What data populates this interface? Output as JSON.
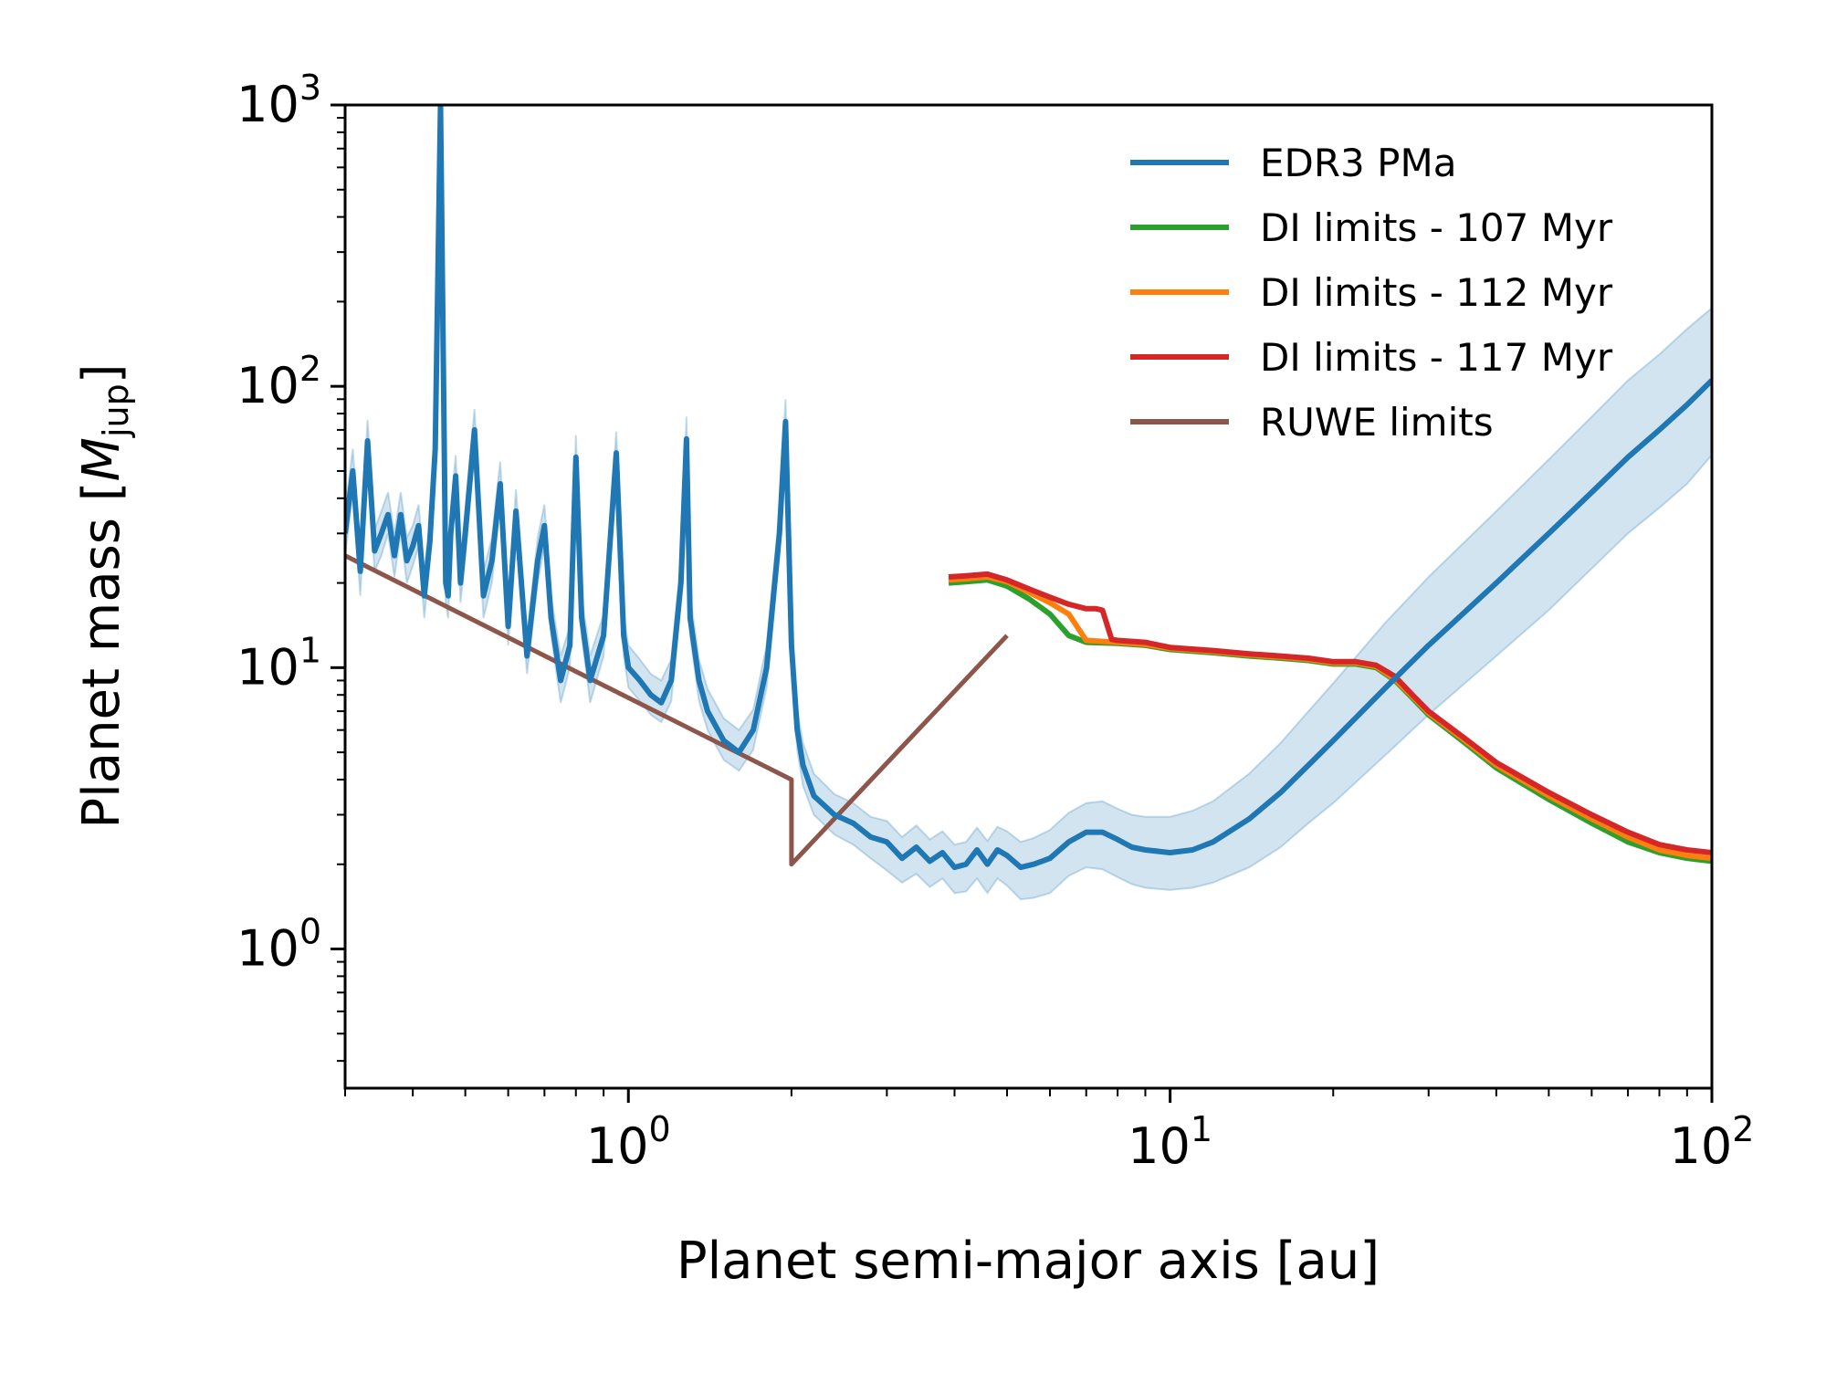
{
  "chart_data": {
    "type": "line",
    "title": "",
    "xlabel": "Planet semi-major axis [au]",
    "ylabel_main": "Planet mass [",
    "ylabel_symbol": "M",
    "ylabel_sub": "jup",
    "ylabel_close": "]",
    "xscale": "log",
    "yscale": "log",
    "xlim": [
      0.3,
      100
    ],
    "ylim": [
      0.32,
      1000
    ],
    "grid": false,
    "legend_position": "top-right",
    "x_ticks": [
      {
        "value": 1,
        "base": "10",
        "exp": "0"
      },
      {
        "value": 10,
        "base": "10",
        "exp": "1"
      },
      {
        "value": 100,
        "base": "10",
        "exp": "2"
      }
    ],
    "y_ticks": [
      {
        "value": 1,
        "base": "10",
        "exp": "0"
      },
      {
        "value": 10,
        "base": "10",
        "exp": "1"
      },
      {
        "value": 100,
        "base": "10",
        "exp": "2"
      },
      {
        "value": 1000,
        "base": "10",
        "exp": "3"
      }
    ],
    "series": [
      {
        "name": "EDR3 PMa",
        "color": "#1f77b4",
        "band_color": "#1f77b4",
        "x": [
          0.3,
          0.31,
          0.32,
          0.33,
          0.34,
          0.35,
          0.36,
          0.37,
          0.38,
          0.39,
          0.4,
          0.41,
          0.42,
          0.43,
          0.44,
          0.45,
          0.46,
          0.465,
          0.47,
          0.48,
          0.49,
          0.5,
          0.52,
          0.54,
          0.56,
          0.58,
          0.6,
          0.62,
          0.65,
          0.68,
          0.7,
          0.72,
          0.75,
          0.78,
          0.8,
          0.82,
          0.85,
          0.9,
          0.95,
          0.98,
          1.0,
          1.05,
          1.1,
          1.15,
          1.2,
          1.25,
          1.28,
          1.3,
          1.35,
          1.4,
          1.5,
          1.6,
          1.7,
          1.8,
          1.9,
          1.95,
          2.0,
          2.05,
          2.1,
          2.2,
          2.4,
          2.6,
          2.8,
          3.0,
          3.2,
          3.4,
          3.6,
          3.8,
          4.0,
          4.2,
          4.4,
          4.6,
          4.8,
          5.0,
          5.3,
          5.6,
          6.0,
          6.5,
          7.0,
          7.5,
          8.0,
          8.5,
          9.0,
          10,
          11,
          12,
          14,
          16,
          18,
          20,
          25,
          30,
          40,
          50,
          60,
          70,
          80,
          90,
          100
        ],
        "y": [
          30,
          50,
          22,
          64,
          26,
          30,
          35,
          25,
          35,
          24,
          27,
          32,
          18,
          28,
          60,
          1000,
          20,
          18,
          30,
          48,
          20,
          30,
          70,
          18,
          24,
          45,
          14,
          36,
          11,
          24,
          32,
          15,
          9,
          12,
          56,
          15,
          9,
          13,
          58,
          13,
          10,
          9,
          8,
          7.5,
          9,
          20,
          65,
          15,
          9,
          7,
          5.5,
          5,
          6,
          10,
          30,
          75,
          12,
          6,
          4.5,
          3.5,
          3.0,
          2.8,
          2.5,
          2.4,
          2.1,
          2.3,
          2.05,
          2.2,
          1.95,
          2.0,
          2.25,
          2.0,
          2.25,
          2.15,
          1.95,
          2.0,
          2.1,
          2.4,
          2.6,
          2.6,
          2.45,
          2.3,
          2.25,
          2.2,
          2.25,
          2.4,
          2.9,
          3.6,
          4.5,
          5.5,
          8.5,
          12,
          20,
          30,
          42,
          56,
          70,
          86,
          105
        ],
        "band_lower": [
          25,
          42,
          18,
          54,
          22,
          25,
          30,
          21,
          30,
          20,
          23,
          27,
          15,
          24,
          50,
          900,
          17,
          15,
          25,
          40,
          17,
          25,
          58,
          15,
          20,
          38,
          12,
          30,
          9.5,
          20,
          27,
          13,
          7.5,
          10,
          47,
          13,
          7.5,
          11,
          49,
          11,
          8.5,
          7.6,
          6.8,
          6.4,
          7.6,
          17,
          55,
          13,
          7.6,
          6,
          4.7,
          4.3,
          5.1,
          8.5,
          25,
          64,
          10,
          5.1,
          3.8,
          3.0,
          2.55,
          2.35,
          2.1,
          1.9,
          1.72,
          1.85,
          1.66,
          1.78,
          1.58,
          1.6,
          1.78,
          1.58,
          1.78,
          1.68,
          1.5,
          1.52,
          1.58,
          1.82,
          1.95,
          1.92,
          1.8,
          1.7,
          1.65,
          1.62,
          1.65,
          1.72,
          1.95,
          2.3,
          2.8,
          3.3,
          4.9,
          6.8,
          11,
          16,
          22.5,
          30,
          37,
          45,
          57
        ],
        "band_upper": [
          36,
          60,
          26,
          76,
          31,
          36,
          42,
          30,
          42,
          29,
          32,
          38,
          22,
          33,
          72,
          1000,
          24,
          22,
          36,
          57,
          24,
          36,
          83,
          22,
          29,
          54,
          17,
          43,
          13,
          29,
          38,
          18,
          11,
          14,
          67,
          18,
          11,
          15.5,
          69,
          15.5,
          12,
          10.7,
          9.5,
          9,
          10.7,
          24,
          78,
          18,
          10.7,
          8.4,
          6.6,
          6,
          7.1,
          12,
          36,
          90,
          14.3,
          7.1,
          5.4,
          4.2,
          3.55,
          3.3,
          2.95,
          2.85,
          2.5,
          2.75,
          2.45,
          2.62,
          2.35,
          2.4,
          2.7,
          2.42,
          2.72,
          2.62,
          2.4,
          2.48,
          2.65,
          3.05,
          3.3,
          3.35,
          3.15,
          3.0,
          2.95,
          2.95,
          3.1,
          3.35,
          4.2,
          5.4,
          7.0,
          8.8,
          14.5,
          21,
          36,
          55,
          78,
          105,
          130,
          160,
          190
        ]
      },
      {
        "name": "DI limits - 107 Myr",
        "color": "#2ca02c",
        "x": [
          3.9,
          4.2,
          4.6,
          5.0,
          5.5,
          6.0,
          6.5,
          7.0,
          8.0,
          9.0,
          10,
          12,
          14,
          16,
          18,
          20,
          22,
          24,
          26,
          28,
          30,
          35,
          40,
          50,
          60,
          70,
          80,
          90,
          100
        ],
        "y": [
          20,
          20.2,
          20.5,
          19.5,
          17.5,
          15.5,
          13,
          12.3,
          12.2,
          12,
          11.6,
          11.3,
          11,
          10.8,
          10.6,
          10.3,
          10.3,
          10.0,
          9.0,
          7.8,
          6.8,
          5.4,
          4.4,
          3.4,
          2.8,
          2.4,
          2.2,
          2.1,
          2.05
        ]
      },
      {
        "name": "DI limits - 112 Myr",
        "color": "#ff7f0e",
        "x": [
          3.9,
          4.2,
          4.6,
          5.0,
          5.5,
          6.0,
          6.5,
          7.0,
          8.0,
          9.0,
          10,
          12,
          14,
          16,
          18,
          20,
          22,
          24,
          26,
          28,
          30,
          35,
          40,
          50,
          60,
          70,
          80,
          90,
          100
        ],
        "y": [
          20.5,
          20.7,
          21,
          20.2,
          18.5,
          17,
          15.5,
          12.5,
          12.3,
          12.1,
          11.7,
          11.4,
          11.1,
          10.9,
          10.7,
          10.4,
          10.4,
          10.1,
          9.1,
          7.9,
          6.9,
          5.5,
          4.5,
          3.5,
          2.9,
          2.5,
          2.25,
          2.15,
          2.1
        ]
      },
      {
        "name": "DI limits - 117 Myr",
        "color": "#d62728",
        "x": [
          3.9,
          4.2,
          4.6,
          5.0,
          5.5,
          6.0,
          6.5,
          7.0,
          7.3,
          7.5,
          7.8,
          8.0,
          9.0,
          10,
          12,
          14,
          16,
          18,
          20,
          22,
          24,
          26,
          28,
          30,
          35,
          40,
          50,
          60,
          70,
          80,
          90,
          100
        ],
        "y": [
          21,
          21.2,
          21.5,
          20.5,
          19,
          17.8,
          16.8,
          16.2,
          16.2,
          16.0,
          12.6,
          12.5,
          12.3,
          11.8,
          11.5,
          11.2,
          11.0,
          10.8,
          10.5,
          10.5,
          10.2,
          9.3,
          8.0,
          7.0,
          5.6,
          4.6,
          3.6,
          3.0,
          2.6,
          2.35,
          2.25,
          2.2
        ]
      },
      {
        "name": "RUWE limits",
        "color": "#8c564b",
        "x": [
          0.3,
          2.0,
          2.0,
          5.0
        ],
        "y": [
          25,
          4.0,
          2.0,
          13
        ]
      }
    ]
  }
}
